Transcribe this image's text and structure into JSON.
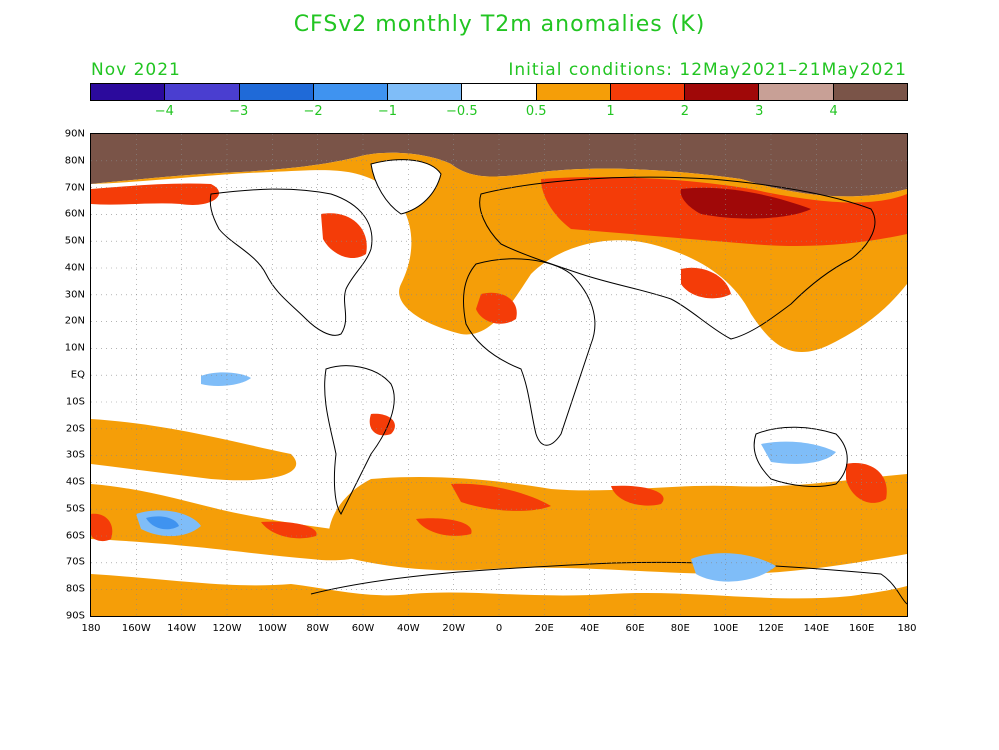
{
  "title": "CFSv2 monthly T2m anomalies (K)",
  "valid_month": "Nov 2021",
  "initial_conditions": "Initial conditions: 12May2021–21May2021",
  "colorbar": {
    "colors": [
      "#2b0a9c",
      "#4a3ed0",
      "#1f6ad8",
      "#3f93f0",
      "#7fbdf8",
      "#ffffff",
      "#f59e08",
      "#f43c08",
      "#a00808",
      "#c8a096",
      "#7a5448"
    ],
    "labels": [
      "−4",
      "−3",
      "−2",
      "−1",
      "−0.5",
      "0.5",
      "1",
      "2",
      "3",
      "4"
    ]
  },
  "axes": {
    "lat_labels": [
      "90N",
      "80N",
      "70N",
      "60N",
      "50N",
      "40N",
      "30N",
      "20N",
      "10N",
      "EQ",
      "10S",
      "20S",
      "30S",
      "40S",
      "50S",
      "60S",
      "70S",
      "80S",
      "90S"
    ],
    "lon_labels": [
      "180",
      "160W",
      "140W",
      "120W",
      "100W",
      "80W",
      "60W",
      "40W",
      "20W",
      "0",
      "20E",
      "40E",
      "60E",
      "80E",
      "100E",
      "120E",
      "140E",
      "160E",
      "180"
    ]
  }
}
